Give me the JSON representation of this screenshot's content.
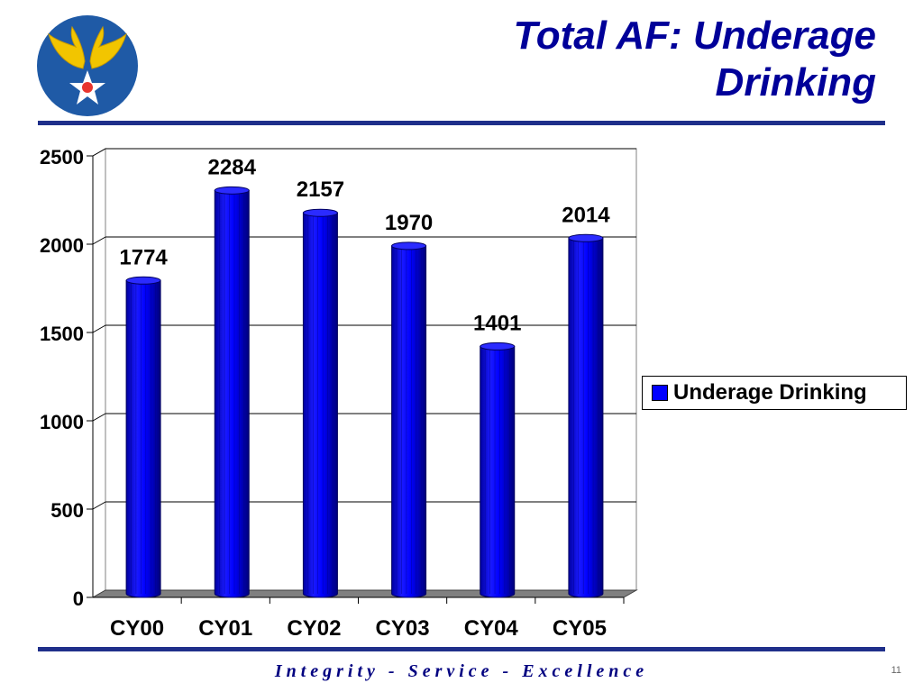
{
  "slide": {
    "title_line1": "Total AF: Underage",
    "title_line2": "Drinking",
    "footer": "Integrity - Service - Excellence",
    "page_number": "11"
  },
  "logo": {
    "icon": "army-air-corps-wings-star-icon",
    "colors": {
      "circle": "#1f5aa6",
      "wings": "#f2c500",
      "star": "#ffffff",
      "center": "#e8352e"
    }
  },
  "colors": {
    "bar": "#0000ff",
    "title": "#000099",
    "rule": "#1f2f8a"
  },
  "chart_data": {
    "type": "bar",
    "categories": [
      "CY00",
      "CY01",
      "CY02",
      "CY03",
      "CY04",
      "CY05"
    ],
    "series": [
      {
        "name": "Underage Drinking",
        "values": [
          1774,
          2284,
          2157,
          1970,
          1401,
          2014
        ]
      }
    ],
    "yticks": [
      "0",
      "500",
      "1000",
      "1500",
      "2000",
      "2500"
    ],
    "ylim": [
      0,
      2500
    ],
    "grid": true,
    "data_labels": true,
    "legend_position": "right",
    "title": "",
    "xlabel": "",
    "ylabel": ""
  }
}
